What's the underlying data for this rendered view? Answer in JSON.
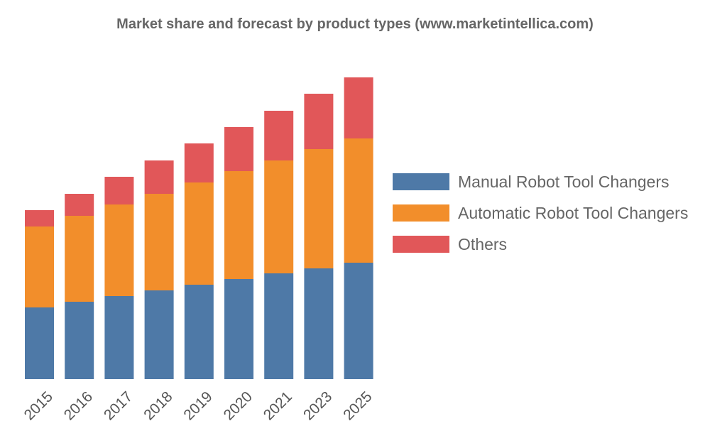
{
  "chart_data": {
    "type": "bar",
    "stacked": true,
    "title": "Market share and forecast by product types (www.marketintellica.com)",
    "xlabel": "",
    "ylabel": "",
    "categories": [
      "2015",
      "2016",
      "2017",
      "2018",
      "2019",
      "2020",
      "2021",
      "2023",
      "2025"
    ],
    "series": [
      {
        "name": "Manual Robot Tool Changers",
        "color": "#4e79a7",
        "values": [
          101,
          109,
          117,
          125,
          133,
          141,
          149,
          156,
          164
        ]
      },
      {
        "name": "Automatic Robot Tool Changers",
        "color": "#f28e2b",
        "values": [
          114,
          121,
          129,
          136,
          144,
          152,
          159,
          168,
          175
        ]
      },
      {
        "name": "Others",
        "color": "#e15759",
        "values": [
          23,
          31,
          39,
          47,
          55,
          62,
          70,
          78,
          86
        ]
      }
    ],
    "ylim": [
      0,
      425
    ],
    "y_axis_visible": false,
    "grid": false,
    "legend_position": "right"
  }
}
